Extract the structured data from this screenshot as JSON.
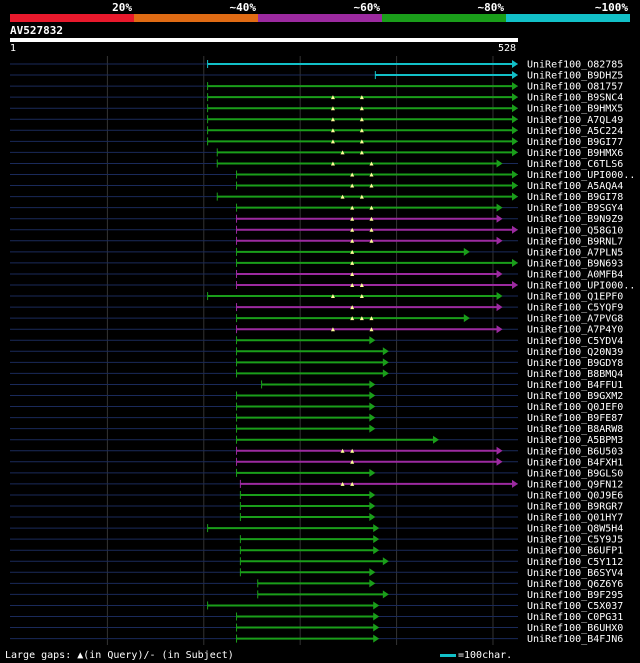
{
  "legend": {
    "percent_labels": [
      "20%",
      "~40%",
      "~60%",
      "~80%",
      "~100%"
    ],
    "colors": [
      "#e8192c",
      "#e06b14",
      "#9c2aa0",
      "#1a9e1a",
      "#12c0c8"
    ]
  },
  "query": {
    "id": "AV527832",
    "start_label": "1",
    "end_label": "528",
    "length": 528
  },
  "footer": {
    "gap_note": "Large gaps: ▲(in Query)/- (in Subject)",
    "scale_note": "=100char.",
    "scale_color": "#12c0c8"
  },
  "colors": {
    "background": "#000000",
    "backbone": "#1a2a5a",
    "gridline": "#333333",
    "gap_marker": "#ffff99"
  },
  "hits": [
    {
      "name": "UniRef100_O82785",
      "start": 206,
      "end": 528,
      "color": "#12c0c8",
      "gaps": []
    },
    {
      "name": "UniRef100_B9DHZ5",
      "start": 380,
      "end": 528,
      "color": "#12c0c8",
      "gaps": []
    },
    {
      "name": "UniRef100_O81757",
      "start": 206,
      "end": 528,
      "color": "#1a9e1a",
      "gaps": []
    },
    {
      "name": "UniRef100_B9SNC4",
      "start": 206,
      "end": 528,
      "color": "#1a9e1a",
      "gaps": [
        336,
        366
      ]
    },
    {
      "name": "UniRef100_B9HMX5",
      "start": 206,
      "end": 528,
      "color": "#1a9e1a",
      "gaps": [
        336,
        366
      ]
    },
    {
      "name": "UniRef100_A7QL49",
      "start": 206,
      "end": 528,
      "color": "#1a9e1a",
      "gaps": [
        336,
        366
      ]
    },
    {
      "name": "UniRef100_A5C224",
      "start": 206,
      "end": 528,
      "color": "#1a9e1a",
      "gaps": [
        336,
        366
      ]
    },
    {
      "name": "UniRef100_B9GI77",
      "start": 206,
      "end": 528,
      "color": "#1a9e1a",
      "gaps": [
        336,
        366
      ]
    },
    {
      "name": "UniRef100_B9HMX6",
      "start": 216,
      "end": 528,
      "color": "#1a9e1a",
      "gaps": [
        346,
        366
      ]
    },
    {
      "name": "UniRef100_C6TLS6",
      "start": 216,
      "end": 512,
      "color": "#1a9e1a",
      "gaps": [
        336,
        376
      ]
    },
    {
      "name": "UniRef100_UPI000..",
      "start": 236,
      "end": 528,
      "color": "#1a9e1a",
      "gaps": [
        356,
        376
      ]
    },
    {
      "name": "UniRef100_A5AQA4",
      "start": 236,
      "end": 528,
      "color": "#1a9e1a",
      "gaps": [
        356,
        376
      ]
    },
    {
      "name": "UniRef100_B9GI78",
      "start": 216,
      "end": 528,
      "color": "#1a9e1a",
      "gaps": [
        346,
        366
      ]
    },
    {
      "name": "UniRef100_B9SGY4",
      "start": 236,
      "end": 512,
      "color": "#1a9e1a",
      "gaps": [
        356,
        376
      ]
    },
    {
      "name": "UniRef100_B9N9Z9",
      "start": 236,
      "end": 512,
      "color": "#9c2aa0",
      "gaps": [
        356,
        376
      ]
    },
    {
      "name": "UniRef100_Q58G10",
      "start": 236,
      "end": 528,
      "color": "#9c2aa0",
      "gaps": [
        356,
        376
      ]
    },
    {
      "name": "UniRef100_B9RNL7",
      "start": 236,
      "end": 512,
      "color": "#9c2aa0",
      "gaps": [
        356,
        376
      ]
    },
    {
      "name": "UniRef100_A7PLN5",
      "start": 236,
      "end": 478,
      "color": "#1a9e1a",
      "gaps": [
        356
      ]
    },
    {
      "name": "UniRef100_B9N693",
      "start": 236,
      "end": 528,
      "color": "#1a9e1a",
      "gaps": [
        356
      ]
    },
    {
      "name": "UniRef100_A0MFB4",
      "start": 236,
      "end": 512,
      "color": "#9c2aa0",
      "gaps": [
        356
      ]
    },
    {
      "name": "UniRef100_UPI000..",
      "start": 236,
      "end": 528,
      "color": "#9c2aa0",
      "gaps": [
        356,
        366
      ]
    },
    {
      "name": "UniRef100_Q1EPF0",
      "start": 206,
      "end": 512,
      "color": "#1a9e1a",
      "gaps": [
        336,
        366
      ]
    },
    {
      "name": "UniRef100_C5YQF9",
      "start": 236,
      "end": 512,
      "color": "#9c2aa0",
      "gaps": [
        356
      ]
    },
    {
      "name": "UniRef100_A7PVG8",
      "start": 236,
      "end": 478,
      "color": "#1a9e1a",
      "gaps": [
        356,
        366,
        376
      ]
    },
    {
      "name": "UniRef100_A7P4Y0",
      "start": 236,
      "end": 512,
      "color": "#9c2aa0",
      "gaps": [
        336,
        376
      ]
    },
    {
      "name": "UniRef100_C5YDV4",
      "start": 236,
      "end": 380,
      "color": "#1a9e1a",
      "gaps": []
    },
    {
      "name": "UniRef100_Q20N39",
      "start": 236,
      "end": 394,
      "color": "#1a9e1a",
      "gaps": []
    },
    {
      "name": "UniRef100_B9GDY8",
      "start": 236,
      "end": 394,
      "color": "#1a9e1a",
      "gaps": []
    },
    {
      "name": "UniRef100_B8BMQ4",
      "start": 236,
      "end": 394,
      "color": "#1a9e1a",
      "gaps": []
    },
    {
      "name": "UniRef100_B4FFU1",
      "start": 262,
      "end": 380,
      "color": "#1a9e1a",
      "gaps": []
    },
    {
      "name": "UniRef100_B9GXM2",
      "start": 236,
      "end": 380,
      "color": "#1a9e1a",
      "gaps": []
    },
    {
      "name": "UniRef100_Q0JEF0",
      "start": 236,
      "end": 380,
      "color": "#1a9e1a",
      "gaps": []
    },
    {
      "name": "UniRef100_B9FE87",
      "start": 236,
      "end": 380,
      "color": "#1a9e1a",
      "gaps": []
    },
    {
      "name": "UniRef100_B8ARW8",
      "start": 236,
      "end": 380,
      "color": "#1a9e1a",
      "gaps": []
    },
    {
      "name": "UniRef100_A5BPM3",
      "start": 236,
      "end": 446,
      "color": "#1a9e1a",
      "gaps": []
    },
    {
      "name": "UniRef100_B6U503",
      "start": 236,
      "end": 512,
      "color": "#9c2aa0",
      "gaps": [
        346,
        356
      ]
    },
    {
      "name": "UniRef100_B4FXH1",
      "start": 236,
      "end": 512,
      "color": "#9c2aa0",
      "gaps": [
        356
      ]
    },
    {
      "name": "UniRef100_B9GLS0",
      "start": 236,
      "end": 380,
      "color": "#1a9e1a",
      "gaps": []
    },
    {
      "name": "UniRef100_Q9FN12",
      "start": 240,
      "end": 528,
      "color": "#9c2aa0",
      "gaps": [
        346,
        356
      ]
    },
    {
      "name": "UniRef100_Q0J9E6",
      "start": 240,
      "end": 380,
      "color": "#1a9e1a",
      "gaps": []
    },
    {
      "name": "UniRef100_B9RGR7",
      "start": 240,
      "end": 380,
      "color": "#1a9e1a",
      "gaps": []
    },
    {
      "name": "UniRef100_Q01HY7",
      "start": 240,
      "end": 380,
      "color": "#1a9e1a",
      "gaps": []
    },
    {
      "name": "UniRef100_Q8W5H4",
      "start": 206,
      "end": 384,
      "color": "#1a9e1a",
      "gaps": []
    },
    {
      "name": "UniRef100_C5Y9J5",
      "start": 240,
      "end": 384,
      "color": "#1a9e1a",
      "gaps": []
    },
    {
      "name": "UniRef100_B6UFP1",
      "start": 240,
      "end": 384,
      "color": "#1a9e1a",
      "gaps": []
    },
    {
      "name": "UniRef100_C5Y112",
      "start": 240,
      "end": 394,
      "color": "#1a9e1a",
      "gaps": []
    },
    {
      "name": "UniRef100_B6SYV4",
      "start": 240,
      "end": 380,
      "color": "#1a9e1a",
      "gaps": []
    },
    {
      "name": "UniRef100_Q6Z6Y6",
      "start": 258,
      "end": 380,
      "color": "#1a9e1a",
      "gaps": []
    },
    {
      "name": "UniRef100_B9F295",
      "start": 258,
      "end": 394,
      "color": "#1a9e1a",
      "gaps": []
    },
    {
      "name": "UniRef100_C5X037",
      "start": 206,
      "end": 384,
      "color": "#1a9e1a",
      "gaps": []
    },
    {
      "name": "UniRef100_C0PG31",
      "start": 236,
      "end": 384,
      "color": "#1a9e1a",
      "gaps": []
    },
    {
      "name": "UniRef100_B6UHX0",
      "start": 236,
      "end": 384,
      "color": "#1a9e1a",
      "gaps": []
    },
    {
      "name": "UniRef100_B4FJN6",
      "start": 236,
      "end": 384,
      "color": "#1a9e1a",
      "gaps": []
    }
  ]
}
